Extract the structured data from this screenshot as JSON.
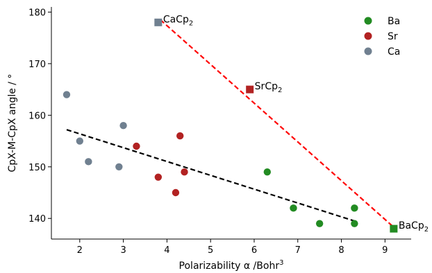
{
  "chart_data": {
    "type": "scatter",
    "title": "",
    "xlabel": "Polarizability α /Bohr",
    "xlabel_superscript": "3",
    "ylabel": "CpX-M-CpX angle / °",
    "xlim": [
      1.35,
      9.6
    ],
    "ylim": [
      136,
      181
    ],
    "x_ticks": [
      2,
      3,
      4,
      5,
      6,
      7,
      8,
      9
    ],
    "y_ticks": [
      140,
      150,
      160,
      170,
      180
    ],
    "grid": false,
    "legend_position": "top-right",
    "series": [
      {
        "name": "Ba",
        "color": "#228B22",
        "points": [
          [
            6.3,
            149
          ],
          [
            6.9,
            142
          ],
          [
            7.5,
            139
          ],
          [
            8.3,
            142
          ],
          [
            8.3,
            139
          ]
        ]
      },
      {
        "name": "Sr",
        "color": "#B22222",
        "points": [
          [
            3.3,
            154
          ],
          [
            3.8,
            148
          ],
          [
            4.2,
            145
          ],
          [
            4.3,
            156
          ],
          [
            4.4,
            149
          ]
        ]
      },
      {
        "name": "Ca",
        "color": "#708090",
        "points": [
          [
            1.7,
            164
          ],
          [
            2.0,
            155
          ],
          [
            2.2,
            151
          ],
          [
            2.9,
            150
          ],
          [
            3.0,
            158
          ]
        ]
      }
    ],
    "labeled_points": [
      {
        "label": "CaCp",
        "subscript": "2",
        "x": 3.8,
        "y": 178,
        "color": "#708090"
      },
      {
        "label": "SrCp",
        "subscript": "2",
        "x": 5.9,
        "y": 165,
        "color": "#B22222"
      },
      {
        "label": "BaCp",
        "subscript": "2",
        "x": 9.2,
        "y": 138,
        "color": "#228B22"
      }
    ],
    "trendlines": [
      {
        "color": "#FF0000",
        "style": "dashed",
        "from": [
          3.85,
          178.5
        ],
        "to": [
          9.2,
          138.3
        ]
      },
      {
        "color": "#000000",
        "style": "dashed",
        "from": [
          1.7,
          157.2
        ],
        "to": [
          8.3,
          139.5
        ]
      }
    ]
  }
}
